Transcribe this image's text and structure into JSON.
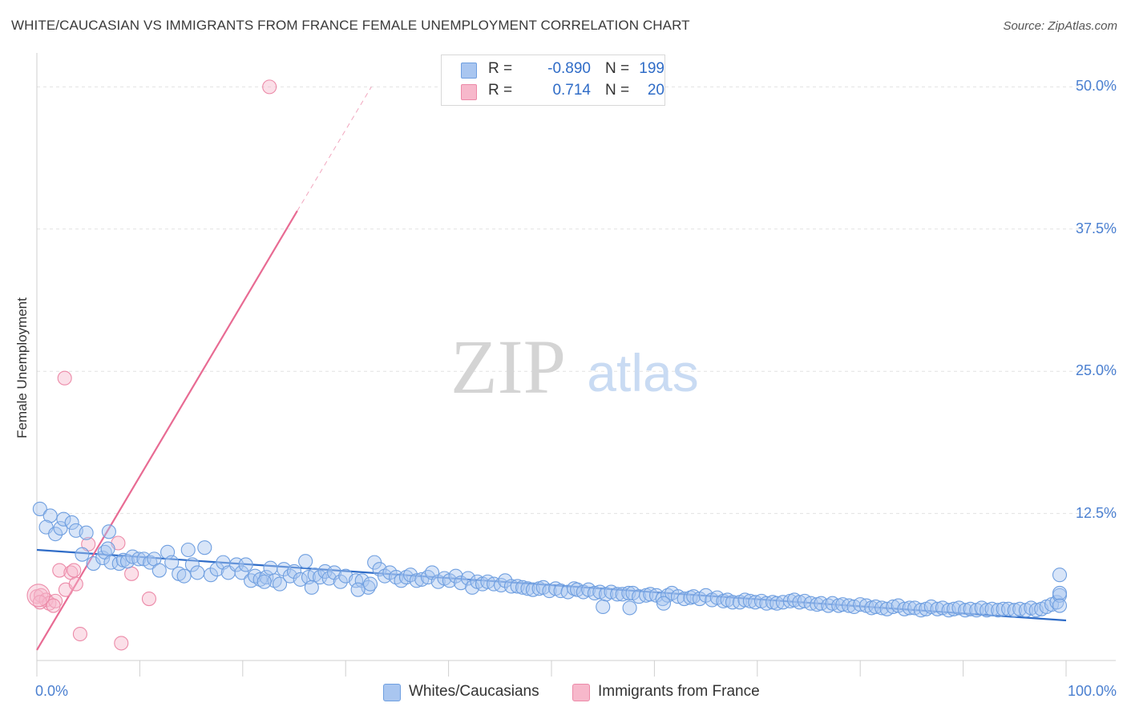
{
  "title": "WHITE/CAUCASIAN VS IMMIGRANTS FROM FRANCE FEMALE UNEMPLOYMENT CORRELATION CHART",
  "source": "Source: ZipAtlas.com",
  "watermark": {
    "zip": "ZIP",
    "atlas": "atlas"
  },
  "legend": {
    "rows": [
      {
        "r_label": "R =",
        "r_value": "-0.890",
        "n_label": "N =",
        "n_value": "199",
        "color": "#a9c6f0",
        "border": "#6f9fe0"
      },
      {
        "r_label": "R =",
        "r_value": "0.714",
        "n_label": "N =",
        "n_value": "20",
        "color": "#f7b8cb",
        "border": "#ec8aa8"
      }
    ]
  },
  "bottom_legend": [
    {
      "label": "Whites/Caucasians",
      "color": "#a9c6f0",
      "border": "#6f9fe0"
    },
    {
      "label": "Immigrants from France",
      "color": "#f7b8cb",
      "border": "#ec8aa8"
    }
  ],
  "chart_data": {
    "type": "scatter",
    "title": "WHITE/CAUCASIAN VS IMMIGRANTS FROM FRANCE FEMALE UNEMPLOYMENT CORRELATION CHART",
    "xlabel": "",
    "ylabel": "Female Unemployment",
    "xlim": [
      0,
      100
    ],
    "ylim": [
      0,
      52
    ],
    "x_tick_labels": [
      {
        "value": 0,
        "label": "0.0%"
      },
      {
        "value": 100,
        "label": "100.0%"
      }
    ],
    "y_tick_labels": [
      {
        "value": 12.5,
        "label": "12.5%"
      },
      {
        "value": 25.0,
        "label": "25.0%"
      },
      {
        "value": 37.5,
        "label": "37.5%"
      },
      {
        "value": 50.0,
        "label": "50.0%"
      }
    ],
    "grid": true,
    "series": [
      {
        "name": "Whites/Caucasians",
        "color": "#a9c6f0",
        "border": "#6f9fe0",
        "trend": {
          "x0": 0,
          "y0": 9.3,
          "x1": 100,
          "y1": 3.1,
          "color": "#2f6cc7",
          "dashed_to": null
        },
        "points": [
          [
            0.3,
            12.9
          ],
          [
            1.3,
            12.3
          ],
          [
            0.9,
            11.3
          ],
          [
            1.8,
            10.7
          ],
          [
            2.3,
            11.2
          ],
          [
            2.6,
            12.0
          ],
          [
            3.4,
            11.7
          ],
          [
            3.8,
            11.0
          ],
          [
            4.8,
            10.8
          ],
          [
            7.0,
            10.9
          ],
          [
            4.4,
            8.9
          ],
          [
            5.5,
            8.1
          ],
          [
            6.4,
            8.6
          ],
          [
            6.6,
            9.1
          ],
          [
            6.9,
            9.4
          ],
          [
            7.2,
            8.2
          ],
          [
            8.0,
            8.1
          ],
          [
            8.4,
            8.4
          ],
          [
            8.8,
            8.3
          ],
          [
            9.3,
            8.7
          ],
          [
            9.9,
            8.5
          ],
          [
            10.4,
            8.5
          ],
          [
            11.0,
            8.2
          ],
          [
            11.4,
            8.5
          ],
          [
            11.9,
            7.5
          ],
          [
            12.7,
            9.1
          ],
          [
            13.1,
            8.2
          ],
          [
            13.8,
            7.2
          ],
          [
            14.3,
            7.0
          ],
          [
            14.7,
            9.3
          ],
          [
            15.1,
            8.0
          ],
          [
            15.6,
            7.3
          ],
          [
            16.3,
            9.5
          ],
          [
            16.9,
            7.1
          ],
          [
            17.5,
            7.6
          ],
          [
            18.1,
            8.2
          ],
          [
            18.6,
            7.3
          ],
          [
            19.4,
            8.0
          ],
          [
            19.9,
            7.3
          ],
          [
            20.3,
            8.0
          ],
          [
            20.8,
            6.6
          ],
          [
            21.2,
            7.0
          ],
          [
            21.7,
            6.7
          ],
          [
            22.3,
            6.9
          ],
          [
            22.7,
            7.7
          ],
          [
            23.1,
            6.6
          ],
          [
            23.6,
            6.3
          ],
          [
            24.0,
            7.6
          ],
          [
            24.6,
            7.0
          ],
          [
            25.0,
            7.4
          ],
          [
            25.6,
            6.7
          ],
          [
            26.1,
            8.3
          ],
          [
            26.4,
            6.9
          ],
          [
            27.0,
            7.1
          ],
          [
            27.5,
            6.9
          ],
          [
            28.0,
            7.4
          ],
          [
            28.4,
            6.8
          ],
          [
            28.9,
            7.3
          ],
          [
            29.5,
            6.5
          ],
          [
            30.0,
            7.0
          ],
          [
            31.0,
            6.6
          ],
          [
            31.6,
            6.6
          ],
          [
            32.2,
            6.0
          ],
          [
            32.4,
            6.3
          ],
          [
            32.8,
            8.2
          ],
          [
            33.3,
            7.6
          ],
          [
            33.8,
            7.0
          ],
          [
            34.3,
            7.3
          ],
          [
            34.9,
            6.9
          ],
          [
            35.4,
            6.6
          ],
          [
            35.9,
            6.9
          ],
          [
            36.3,
            7.1
          ],
          [
            36.9,
            6.6
          ],
          [
            37.4,
            6.7
          ],
          [
            38.0,
            6.9
          ],
          [
            38.4,
            7.3
          ],
          [
            39.0,
            6.5
          ],
          [
            39.6,
            6.8
          ],
          [
            40.1,
            6.6
          ],
          [
            40.7,
            7.0
          ],
          [
            41.2,
            6.4
          ],
          [
            41.9,
            6.8
          ],
          [
            42.3,
            6.0
          ],
          [
            42.8,
            6.5
          ],
          [
            43.3,
            6.3
          ],
          [
            43.8,
            6.5
          ],
          [
            44.4,
            6.3
          ],
          [
            45.1,
            6.2
          ],
          [
            45.5,
            6.6
          ],
          [
            46.1,
            6.1
          ],
          [
            46.7,
            6.1
          ],
          [
            47.2,
            6.0
          ],
          [
            47.7,
            5.9
          ],
          [
            48.2,
            5.8
          ],
          [
            48.8,
            5.9
          ],
          [
            49.2,
            6.0
          ],
          [
            49.8,
            5.7
          ],
          [
            50.4,
            5.9
          ],
          [
            50.9,
            5.7
          ],
          [
            51.6,
            5.6
          ],
          [
            52.2,
            5.9
          ],
          [
            52.5,
            5.8
          ],
          [
            53.1,
            5.6
          ],
          [
            53.6,
            5.8
          ],
          [
            54.2,
            5.5
          ],
          [
            54.7,
            5.6
          ],
          [
            55.3,
            5.4
          ],
          [
            55.8,
            5.6
          ],
          [
            56.4,
            5.4
          ],
          [
            56.9,
            5.4
          ],
          [
            57.5,
            5.5
          ],
          [
            57.9,
            5.5
          ],
          [
            58.5,
            5.2
          ],
          [
            59.2,
            5.3
          ],
          [
            59.6,
            5.4
          ],
          [
            60.2,
            5.3
          ],
          [
            60.8,
            5.0
          ],
          [
            61.3,
            5.3
          ],
          [
            61.7,
            5.5
          ],
          [
            62.3,
            5.2
          ],
          [
            62.9,
            5.0
          ],
          [
            63.5,
            5.1
          ],
          [
            63.8,
            5.2
          ],
          [
            64.4,
            5.0
          ],
          [
            65.0,
            5.3
          ],
          [
            65.6,
            4.9
          ],
          [
            66.1,
            5.1
          ],
          [
            66.7,
            4.8
          ],
          [
            67.1,
            4.9
          ],
          [
            67.6,
            4.7
          ],
          [
            68.3,
            4.7
          ],
          [
            68.8,
            4.9
          ],
          [
            69.3,
            4.8
          ],
          [
            69.8,
            4.7
          ],
          [
            70.4,
            4.8
          ],
          [
            70.9,
            4.6
          ],
          [
            71.5,
            4.7
          ],
          [
            71.9,
            4.6
          ],
          [
            72.5,
            4.7
          ],
          [
            73.2,
            4.8
          ],
          [
            73.6,
            4.9
          ],
          [
            74.1,
            4.7
          ],
          [
            74.6,
            4.8
          ],
          [
            75.2,
            4.6
          ],
          [
            75.8,
            4.5
          ],
          [
            76.2,
            4.6
          ],
          [
            76.9,
            4.4
          ],
          [
            77.3,
            4.6
          ],
          [
            77.9,
            4.4
          ],
          [
            78.3,
            4.5
          ],
          [
            78.9,
            4.4
          ],
          [
            79.4,
            4.3
          ],
          [
            80.0,
            4.5
          ],
          [
            80.6,
            4.4
          ],
          [
            81.1,
            4.2
          ],
          [
            81.5,
            4.3
          ],
          [
            82.1,
            4.2
          ],
          [
            82.6,
            4.1
          ],
          [
            83.2,
            4.3
          ],
          [
            83.7,
            4.4
          ],
          [
            84.3,
            4.1
          ],
          [
            84.8,
            4.2
          ],
          [
            85.3,
            4.2
          ],
          [
            85.9,
            4.0
          ],
          [
            86.4,
            4.1
          ],
          [
            86.9,
            4.3
          ],
          [
            87.5,
            4.1
          ],
          [
            88.0,
            4.2
          ],
          [
            88.6,
            4.0
          ],
          [
            89.1,
            4.1
          ],
          [
            89.6,
            4.2
          ],
          [
            90.2,
            4.0
          ],
          [
            90.7,
            4.1
          ],
          [
            91.3,
            4.0
          ],
          [
            91.8,
            4.2
          ],
          [
            92.3,
            4.0
          ],
          [
            92.8,
            4.1
          ],
          [
            93.4,
            4.0
          ],
          [
            93.9,
            4.1
          ],
          [
            94.4,
            4.1
          ],
          [
            95.0,
            4.0
          ],
          [
            95.5,
            4.1
          ],
          [
            96.1,
            4.0
          ],
          [
            96.6,
            4.2
          ],
          [
            97.1,
            4.0
          ],
          [
            97.6,
            4.1
          ],
          [
            98.1,
            4.3
          ],
          [
            98.6,
            4.5
          ],
          [
            99.1,
            4.7
          ],
          [
            99.6,
            5.3
          ],
          [
            100.0,
            5.5
          ],
          [
            101.0,
            7.1
          ],
          [
            100.6,
            4.4
          ],
          [
            57.6,
            4.2
          ],
          [
            26.7,
            6.0
          ],
          [
            31.2,
            5.8
          ],
          [
            22.1,
            6.5
          ],
          [
            60.9,
            4.6
          ],
          [
            55.0,
            4.3
          ]
        ]
      },
      {
        "name": "Immigrants from France",
        "color": "#f7b8cb",
        "border": "#ec8aa8",
        "trend": {
          "x0": 0,
          "y0": 0.5,
          "x1": 25.3,
          "y1": 39.1,
          "color": "#e86b93",
          "dashed_to": {
            "x": 32.5,
            "y": 50.0
          }
        },
        "points": [
          [
            22.6,
            50.0
          ],
          [
            2.7,
            24.4
          ],
          [
            0.0,
            5.2
          ],
          [
            0.4,
            5.3
          ],
          [
            0.9,
            4.9
          ],
          [
            1.2,
            4.6
          ],
          [
            1.8,
            4.8
          ],
          [
            2.2,
            7.5
          ],
          [
            2.8,
            5.8
          ],
          [
            3.3,
            7.3
          ],
          [
            3.6,
            7.5
          ],
          [
            3.8,
            6.3
          ],
          [
            5.0,
            9.8
          ],
          [
            7.9,
            9.9
          ],
          [
            9.2,
            7.2
          ],
          [
            10.9,
            5.0
          ],
          [
            4.2,
            1.9
          ],
          [
            8.2,
            1.1
          ],
          [
            0.3,
            4.7
          ],
          [
            1.6,
            4.4
          ]
        ]
      }
    ]
  }
}
